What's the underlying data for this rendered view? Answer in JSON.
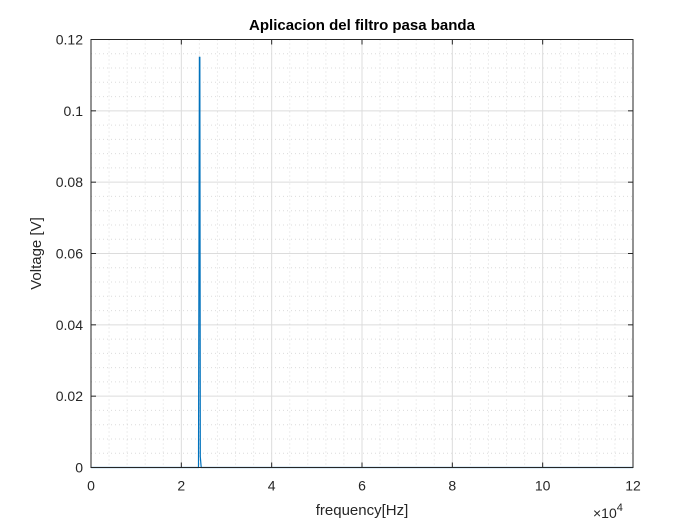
{
  "chart_data": {
    "type": "line",
    "title": "Aplicacion del filtro pasa banda",
    "xlabel": "frequency[Hz]",
    "ylabel": "Voltage [V]",
    "x_exponent_label": "×10",
    "x_exponent_power": "4",
    "xlim": [
      0,
      12
    ],
    "ylim": [
      0,
      0.12
    ],
    "x_ticks": [
      0,
      2,
      4,
      6,
      8,
      10,
      12
    ],
    "x_tick_labels": [
      "0",
      "2",
      "4",
      "6",
      "8",
      "10",
      "12"
    ],
    "y_ticks": [
      0,
      0.02,
      0.04,
      0.06,
      0.08,
      0.1,
      0.12
    ],
    "y_tick_labels": [
      "0",
      "0.02",
      "0.04",
      "0.06",
      "0.08",
      "0.1",
      "0.12"
    ],
    "grid": "on",
    "minor_grid": "on",
    "series": [
      {
        "color": "#0072bd",
        "x": [
          0,
          2.38,
          2.4,
          2.41,
          2.42,
          2.44,
          12
        ],
        "y": [
          0,
          0,
          0.115,
          0.115,
          0.003,
          0,
          0
        ]
      }
    ]
  }
}
